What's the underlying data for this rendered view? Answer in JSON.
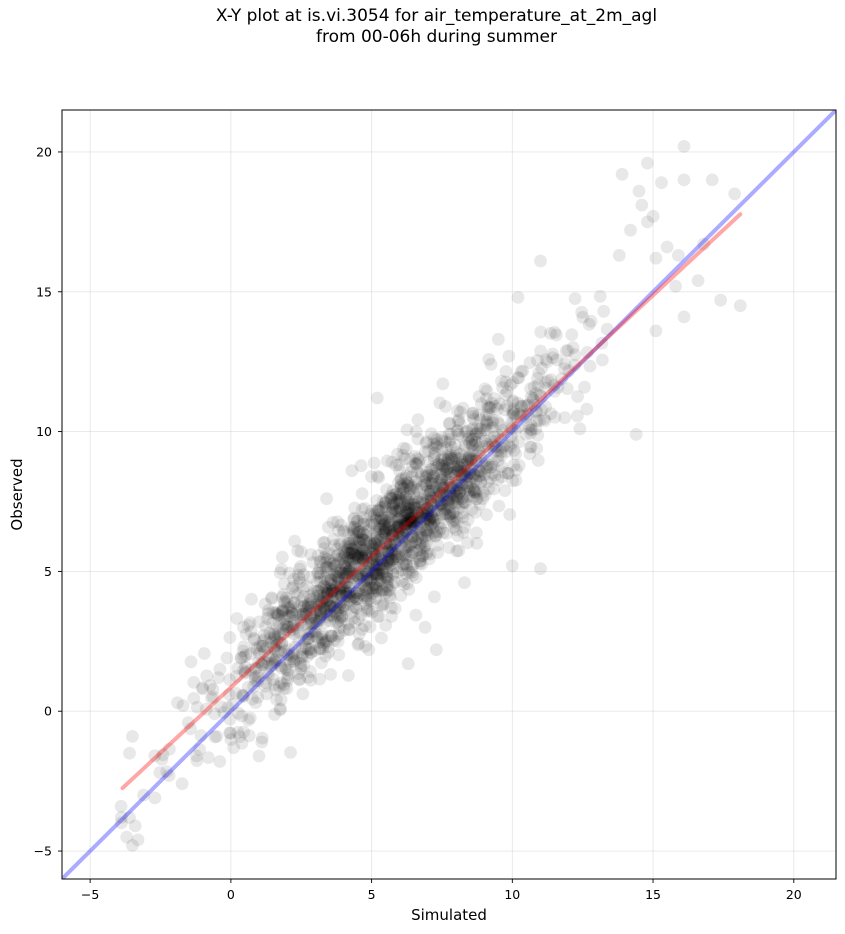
{
  "chart_data": {
    "type": "scatter",
    "title_line1": "X-Y plot at is.vi.3054 for air_temperature_at_2m_agl",
    "title_line2": "from 00-06h during summer",
    "xlabel": "Simulated",
    "ylabel": "Observed",
    "xlim": [
      -6.0,
      21.5
    ],
    "ylim": [
      -6.0,
      21.5
    ],
    "xticks": [
      -5,
      0,
      5,
      10,
      15,
      20
    ],
    "yticks": [
      -5,
      0,
      5,
      10,
      15,
      20
    ],
    "grid": true,
    "point_color": "#000000",
    "point_opacity": 0.09,
    "n_points": 1800,
    "fit_line": {
      "color": "#ff0000",
      "slope": 0.935,
      "intercept": 0.85,
      "x_range": [
        -3.85,
        18.1
      ],
      "opacity": 0.35
    },
    "identity_line": {
      "color": "#0000ff",
      "slope": 1.0,
      "intercept": 0.0,
      "opacity": 0.33
    },
    "outlier_points": [
      [
        16.1,
        20.2
      ],
      [
        14.8,
        19.6
      ],
      [
        13.9,
        19.2
      ],
      [
        16.1,
        19.0
      ],
      [
        17.1,
        19.0
      ],
      [
        15.3,
        18.9
      ],
      [
        14.5,
        18.6
      ],
      [
        17.9,
        18.5
      ],
      [
        14.6,
        18.1
      ],
      [
        15.0,
        17.7
      ],
      [
        14.8,
        17.5
      ],
      [
        14.2,
        17.2
      ],
      [
        15.9,
        16.3
      ],
      [
        15.1,
        16.2
      ],
      [
        15.5,
        16.6
      ],
      [
        17.4,
        14.7
      ],
      [
        18.1,
        14.5
      ],
      [
        16.1,
        14.1
      ],
      [
        15.1,
        13.6
      ],
      [
        14.4,
        9.9
      ],
      [
        13.8,
        16.3
      ],
      [
        16.6,
        15.4
      ],
      [
        15.8,
        15.2
      ],
      [
        16.8,
        16.7
      ],
      [
        11.0,
        16.1
      ],
      [
        10.2,
        14.8
      ],
      [
        5.2,
        11.2
      ],
      [
        9.5,
        13.3
      ],
      [
        6.3,
        1.7
      ],
      [
        7.3,
        2.2
      ],
      [
        4.9,
        2.2
      ],
      [
        -3.9,
        -3.4
      ],
      [
        -3.6,
        -3.8
      ],
      [
        -3.4,
        -4.1
      ],
      [
        -3.3,
        -4.6
      ],
      [
        -3.5,
        -4.8
      ],
      [
        -3.7,
        -4.5
      ],
      [
        -3.1,
        -3.0
      ],
      [
        -2.7,
        -3.1
      ],
      [
        -3.6,
        -1.5
      ],
      [
        -3.5,
        -0.9
      ],
      [
        -2.2,
        -2.3
      ],
      [
        -1.7,
        0.2
      ],
      [
        -1.9,
        0.3
      ],
      [
        1.1,
        -1.1
      ],
      [
        1.0,
        -1.6
      ],
      [
        -0.5,
        -0.9
      ],
      [
        12.4,
        10.1
      ],
      [
        10.0,
        5.2
      ],
      [
        11.0,
        5.1
      ],
      [
        8.3,
        4.6
      ],
      [
        6.9,
        3.0
      ],
      [
        3.4,
        7.6
      ],
      [
        2.5,
        5.7
      ],
      [
        4.3,
        8.6
      ]
    ]
  }
}
